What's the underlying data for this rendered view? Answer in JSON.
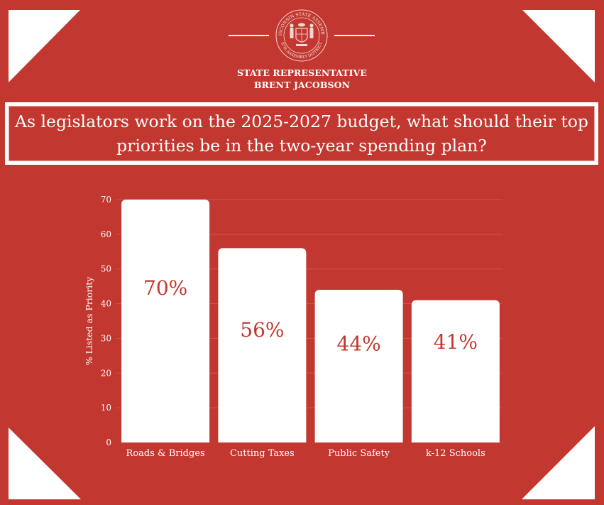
{
  "header": {
    "seal": {
      "top_text": "WISCONSIN STATE ASSEMBLY",
      "bottom_text": "87th ASSEMBLY DISTRICT",
      "icon": "wisconsin-seal-icon"
    },
    "title_line1": "STATE REPRESENTATIVE",
    "title_line2": "BRENT JACOBSON"
  },
  "question": "As legislators work on the 2025-2027 budget, what should their top priorities be in the two-year spending plan?",
  "colors": {
    "background": "#C2372F",
    "bar": "#FFFFFF",
    "value_label": "#C2372F",
    "text": "#FFFFFF",
    "gridline": "#D0564F"
  },
  "chart_data": {
    "type": "bar",
    "title": "As legislators work on the 2025-2027 budget, what should their top priorities be in the two-year spending plan?",
    "categories": [
      "Roads & Bridges",
      "Cutting Taxes",
      "Public Safety",
      "k-12 Schools"
    ],
    "values": [
      70,
      56,
      44,
      41
    ],
    "value_labels": [
      "70%",
      "56%",
      "44%",
      "41%"
    ],
    "xlabel": "",
    "ylabel": "% Listed as Priority",
    "ylim": [
      0,
      70
    ],
    "yticks": [
      0,
      10,
      20,
      30,
      40,
      50,
      60,
      70
    ],
    "grid": true,
    "legend": "none"
  }
}
